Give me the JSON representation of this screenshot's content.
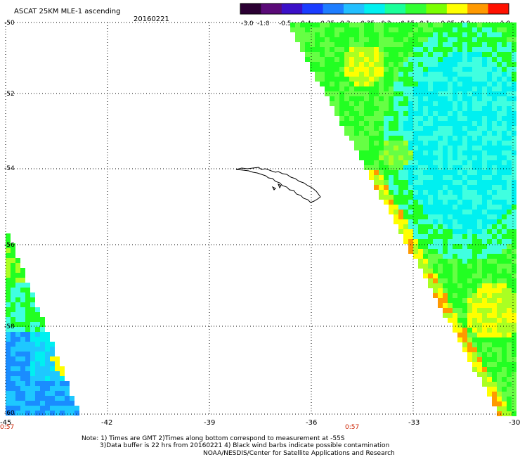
{
  "title": {
    "product": "ASCAT 25KM MLE-1 ascending",
    "date": "20160221"
  },
  "colorbar": {
    "labels": [
      "-3.0",
      "-1.0",
      "-0.5",
      "-0.4",
      "-0.35",
      "-0.3",
      "-0.25",
      "-0.2",
      "-0.15",
      "-0.1",
      "-0.05",
      "0.0",
      "1.0"
    ],
    "colors": [
      "#2b0033",
      "#5a0a78",
      "#3b10c8",
      "#1a3cff",
      "#1e7dff",
      "#22bfff",
      "#00f0f0",
      "#1aff9a",
      "#33ff33",
      "#7bff00",
      "#ffff00",
      "#ff9900",
      "#ff1100"
    ]
  },
  "map": {
    "lat_labels": [
      "-50",
      "-52",
      "-54",
      "-56",
      "-58",
      "-60"
    ],
    "lon_labels": [
      "-45",
      "-42",
      "-39",
      "-36",
      "-33",
      "-30"
    ],
    "time_labels": [
      "0:57",
      "0:57"
    ],
    "legend_colors": {
      "cyan": "#00f0f0",
      "lightcyan": "#40ffe0",
      "green": "#22ff22",
      "lightgreen": "#66ff44",
      "yellowgreen": "#aaff22",
      "yellow": "#ffff00",
      "orange": "#ff9900",
      "blue": "#1a8cff",
      "skyblue": "#1ec8ff"
    }
  },
  "footer": {
    "line1": "Note: 1) Times are GMT 2)Times along bottom correspond to measurement at -55S",
    "line2": "3)Data buffer is 22 hrs from 20160221 4) Black wind barbs indicate possible contamination",
    "line3": "NOAA/NESDIS/Center for Satellite Applications and Research"
  }
}
